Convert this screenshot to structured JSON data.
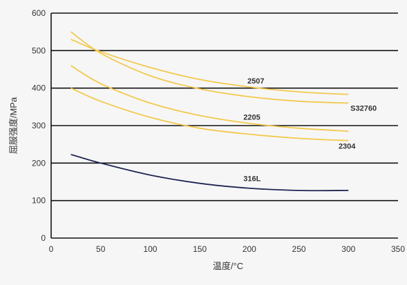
{
  "chart_data": {
    "type": "line",
    "title": "",
    "xlabel": "温度/°C",
    "ylabel": "屈服强度/MPa",
    "xlim": [
      0,
      350
    ],
    "ylim": [
      0,
      600
    ],
    "xticks": [
      0,
      50,
      100,
      150,
      200,
      250,
      300,
      350
    ],
    "yticks": [
      0,
      100,
      200,
      300,
      400,
      500,
      600
    ],
    "grid": "horizontal",
    "legend": "none",
    "series": [
      {
        "name": "2507",
        "color": "#f2c94c",
        "x": [
          20,
          50,
          100,
          150,
          200,
          250,
          300
        ],
        "y": [
          530,
          497,
          455,
          423,
          403,
          390,
          383
        ]
      },
      {
        "name": "S32760",
        "color": "#f2c94c",
        "x": [
          20,
          50,
          100,
          150,
          200,
          250,
          300
        ],
        "y": [
          550,
          493,
          433,
          398,
          377,
          365,
          360
        ]
      },
      {
        "name": "2205",
        "color": "#f2c94c",
        "x": [
          20,
          50,
          100,
          150,
          200,
          250,
          300
        ],
        "y": [
          460,
          412,
          360,
          327,
          306,
          293,
          285
        ]
      },
      {
        "name": "2304",
        "color": "#f2c94c",
        "x": [
          20,
          50,
          100,
          150,
          200,
          250,
          300
        ],
        "y": [
          400,
          365,
          322,
          293,
          277,
          266,
          260
        ]
      },
      {
        "name": "316L",
        "color": "#1e2452",
        "x": [
          20,
          50,
          100,
          150,
          200,
          250,
          300
        ],
        "y": [
          223,
          200,
          168,
          146,
          133,
          127,
          127
        ]
      }
    ],
    "annotations": [
      {
        "text": "2507",
        "x": 198,
        "y": 412
      },
      {
        "text": "S32760",
        "x": 302,
        "y": 340
      },
      {
        "text": "2205",
        "x": 194,
        "y": 316
      },
      {
        "text": "2304",
        "x": 290,
        "y": 238
      },
      {
        "text": "316L",
        "x": 194,
        "y": 152
      }
    ]
  }
}
